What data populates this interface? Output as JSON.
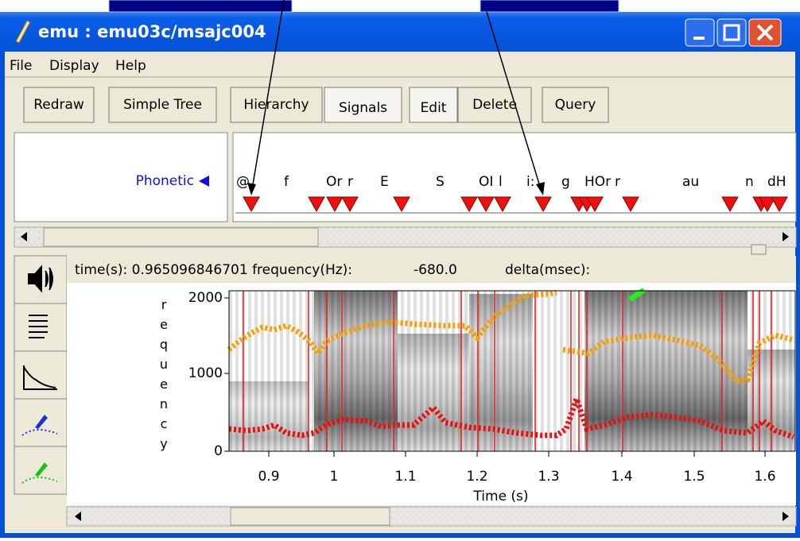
{
  "window": {
    "title": "emu : emu03c/msajc004",
    "menu": [
      "File",
      "Display",
      "Help"
    ],
    "toolbar": [
      "Redraw",
      "Simple Tree",
      "Hierarchy",
      "Signals",
      "Edit",
      "Delete",
      "Query"
    ],
    "tier": {
      "name": "Phonetic",
      "labels": [
        "@",
        "f",
        "Or",
        "r",
        "E",
        "S",
        "OI",
        "l",
        "i:",
        "g",
        "HOr",
        "r",
        "au",
        "n",
        "dH"
      ]
    },
    "info": {
      "time_label": "time(s): 0.965096846701 frequency(Hz):",
      "frequency": "-680.0",
      "delta_label": "delta(msec):"
    },
    "plot": {
      "y_axis_label": "requency",
      "yticks": [
        "2000",
        "1000",
        "0"
      ],
      "xticks": [
        "0.9",
        "1",
        "1.1",
        "1.2",
        "1.3",
        "1.4",
        "1.5",
        "1.6"
      ],
      "x_axis_label": "Time (s)"
    }
  }
}
